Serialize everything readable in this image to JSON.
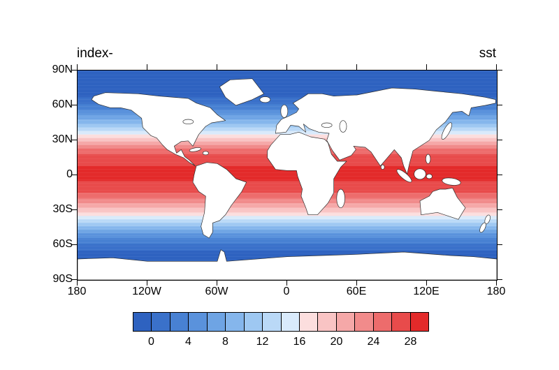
{
  "chart_data": {
    "type": "heatmap",
    "title_left": "index-",
    "title_right": "sst",
    "projection": "global equirectangular map centered on 0 longitude, land masked white with black coastlines",
    "x_tick_labels": [
      "180",
      "120W",
      "60W",
      "0",
      "60E",
      "120E",
      "180"
    ],
    "y_tick_labels": [
      "90N",
      "60N",
      "30N",
      "0",
      "30S",
      "60S",
      "90S"
    ],
    "x_range_deg": [
      -180,
      180
    ],
    "y_range_deg": [
      -90,
      90
    ],
    "contour_interval": 2,
    "colorbar": {
      "labels": [
        "0",
        "4",
        "8",
        "12",
        "16",
        "20",
        "24",
        "28"
      ],
      "boundaries": [
        0,
        2,
        4,
        6,
        8,
        10,
        12,
        14,
        16,
        18,
        20,
        22,
        24,
        26,
        28
      ],
      "cell_colors": [
        "#2e62c0",
        "#3a71ca",
        "#4881d3",
        "#5a92dc",
        "#6ea4e4",
        "#85b6ec",
        "#9ec8f2",
        "#bad9f7",
        "#d9eafb",
        "#fcdede",
        "#f9c4c4",
        "#f5a8a8",
        "#f18b8b",
        "#ed6c6c",
        "#e84b4b",
        "#e32a2a"
      ]
    },
    "zonal_mean_sst": {
      "latitudes": [
        90,
        85,
        80,
        75,
        70,
        65,
        60,
        55,
        50,
        45,
        40,
        35,
        30,
        25,
        20,
        15,
        10,
        5,
        0,
        -5,
        -10,
        -15,
        -20,
        -25,
        -30,
        -35,
        -40,
        -45,
        -50,
        -55,
        -60,
        -65,
        -70,
        -75,
        -80,
        -85,
        -90
      ],
      "values": [
        -2,
        -2,
        -2,
        -1.5,
        -1,
        0.5,
        2.5,
        4.5,
        7,
        9.5,
        13,
        16,
        19.5,
        23,
        25.5,
        27,
        27.8,
        28.2,
        28.3,
        28,
        27.3,
        26,
        24,
        21.5,
        19,
        16,
        12.5,
        9,
        6,
        3.5,
        1.5,
        0,
        -1.2,
        -1.8,
        -2,
        -2,
        -2
      ]
    }
  }
}
